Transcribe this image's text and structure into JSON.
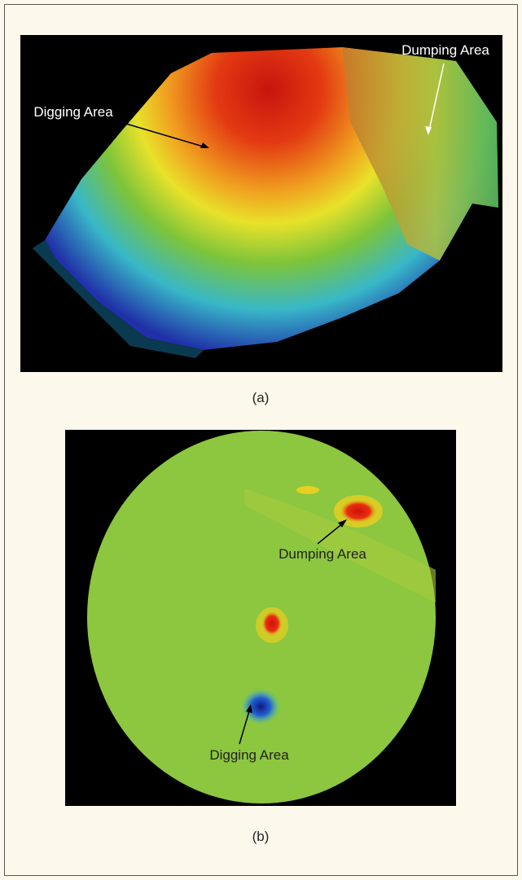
{
  "figure": {
    "panels": [
      {
        "caption": "(a)",
        "annotations": [
          "Digging Area",
          "Dumping Area"
        ]
      },
      {
        "caption": "(b)",
        "annotations": [
          "Dumping Area",
          "Digging Area"
        ]
      }
    ]
  }
}
